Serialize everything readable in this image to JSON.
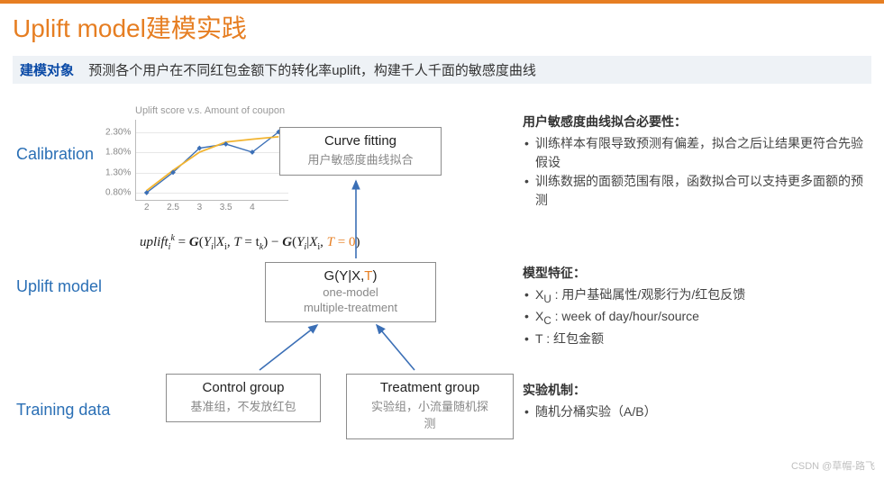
{
  "colors": {
    "accent": "#e67e22",
    "link": "#2a6fb5",
    "banner_label": "#0a4aa6",
    "banner_bg": "#eef2f6",
    "node_border": "#8c8c8c",
    "sub_text": "#888888",
    "line1": "#3b6fb6",
    "line2": "#f2b430",
    "marker": "#3b6fb6",
    "grid": "#e7e7e7"
  },
  "title": "Uplift model建模实践",
  "banner": {
    "label": "建模对象",
    "text": "预测各个用户在不同红包金额下的转化率uplift，构建千人千面的敏感度曲线"
  },
  "sections": {
    "calibration": "Calibration",
    "uplift_model": "Uplift model",
    "training_data": "Training data"
  },
  "chart": {
    "title": "Uplift score v.s. Amount of coupon",
    "type": "line",
    "x": [
      2,
      2.5,
      3,
      3.5,
      4,
      4.5
    ],
    "y_blue": [
      0.8,
      1.3,
      1.9,
      2.0,
      1.8,
      2.3
    ],
    "y_yellow": [
      0.85,
      1.35,
      1.8,
      2.05,
      2.12,
      2.18
    ],
    "xlim": [
      1.8,
      4.7
    ],
    "ylim": [
      0.6,
      2.6
    ],
    "yticks": [
      0.8,
      1.3,
      1.8,
      2.3
    ],
    "ytick_labels": [
      "0.80%",
      "1.30%",
      "1.80%",
      "2.30%"
    ],
    "xtick_labels": [
      "2",
      "2.5",
      "3",
      "3.5",
      "4"
    ],
    "marker": "diamond",
    "marker_size": 4,
    "line_width": 1.4
  },
  "nodes": {
    "curve": {
      "title": "Curve fitting",
      "sub": "用户敏感度曲线拟合"
    },
    "model": {
      "title_html": "G(Y|X,<span style=\"color:#e67e22\">T</span>)",
      "sub1": "one-model",
      "sub2": "multiple-treatment"
    },
    "control": {
      "title": "Control group",
      "sub": "基准组，不发放红包"
    },
    "treatment": {
      "title": "Treatment group",
      "sub": "实验组，小流量随机探测"
    }
  },
  "formula": {
    "text_html": "<i>uplift</i><span class=\"sub\"><i>i</i></span><span class=\"sup\"><i>k</i></span>&nbsp;=&nbsp;<b><i>G</i></b>(<i>Y</i><span class=\"sub\"><i>i</i></span>|<i>X</i><span class=\"sub\">i</span>,&nbsp;<i>T</i>&nbsp;=&nbsp;t<span class=\"sub\"><i>k</i></span>)&nbsp;−&nbsp;<b><i>G</i></b>(<i>Y</i><span class=\"sub\"><i>i</i></span>|<i>X</i><span class=\"sub\">i</span>,&nbsp;<span class=\"orange\"><i>T</i>&nbsp;=&nbsp;0</span>)"
  },
  "side": {
    "calib": {
      "heading": "用户敏感度曲线拟合必要性：",
      "items": [
        "训练样本有限导致预测有偏差，拟合之后让结果更符合先验假设",
        "训练数据的面额范围有限，函数拟合可以支持更多面额的预测"
      ]
    },
    "model": {
      "heading": "模型特征：",
      "items": [
        "X<sub>U</sub> : 用户基础属性/观影行为/红包反馈",
        "X<sub>C</sub> : week of day/hour/source",
        "T : 红包金额"
      ]
    },
    "train": {
      "heading": "实验机制：",
      "items": [
        "随机分桶实验（A/B）"
      ]
    }
  },
  "watermark": "CSDN @草帽-路飞"
}
